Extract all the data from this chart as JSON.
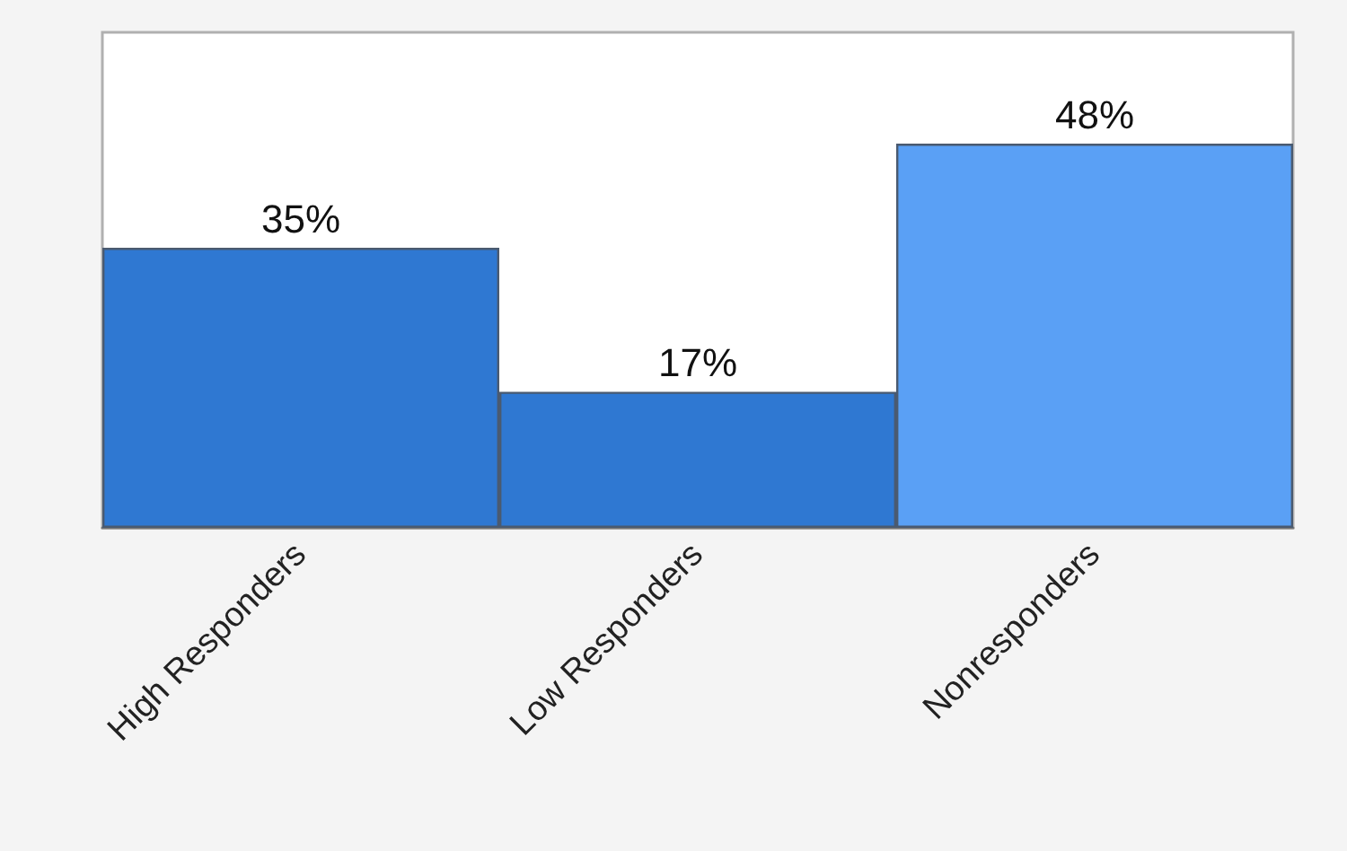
{
  "chart_data": {
    "type": "bar",
    "categories": [
      "High Responders",
      "Low Responders",
      "Nonresponders"
    ],
    "values": [
      35,
      17,
      48
    ],
    "colors": [
      "#2f78d2",
      "#2f78d2",
      "#5aa0f5"
    ],
    "value_labels": [
      "35%",
      "17%",
      "48%"
    ]
  }
}
